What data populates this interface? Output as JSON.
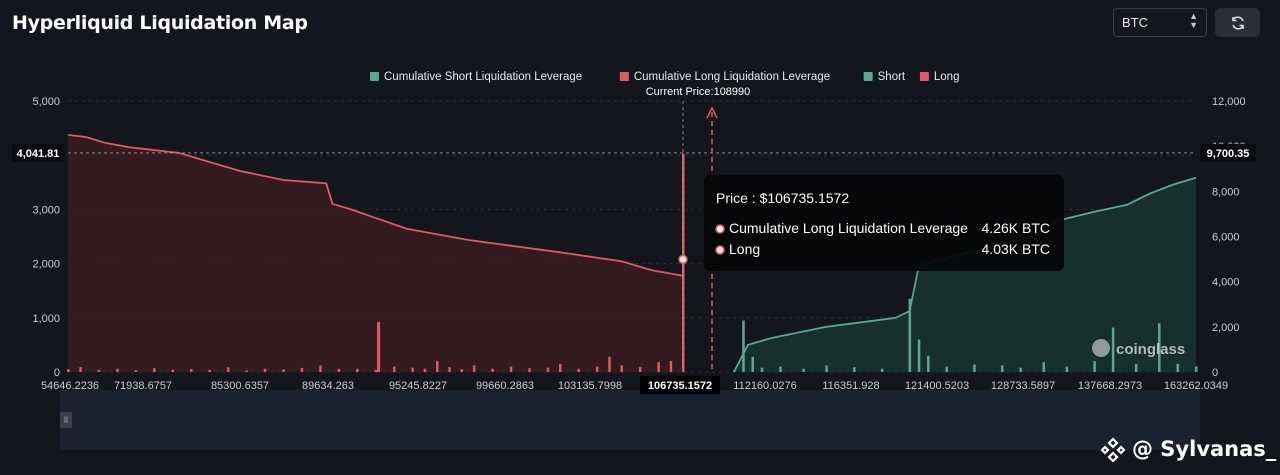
{
  "header": {
    "title": "Hyperliquid Liquidation Map",
    "asset": "BTC",
    "refresh_icon": "refresh-icon"
  },
  "watermark": {
    "text": "@ Sylvanas_",
    "logo_icon": "binance-diamond-icon"
  },
  "colors": {
    "background": "#13161c",
    "long": "#e05a5f",
    "short": "#5aa88e",
    "long_fill": "#3a1c20",
    "short_fill": "#1a3530"
  },
  "chart_data": {
    "type": "bar",
    "legend_position": "top-center",
    "legend": [
      {
        "name": "Cumulative Short Liquidation Leverage",
        "color": "#5aa88e"
      },
      {
        "name": "Cumulative Long Liquidation Leverage",
        "color": "#e05a5f"
      },
      {
        "name": "Short",
        "color": "#5aa88e"
      },
      {
        "name": "Long",
        "color": "#e05a5f"
      }
    ],
    "current_price_label": "Current Price:108990",
    "current_price": 108990,
    "x_ticks": [
      "54646.2236",
      "71938.6757",
      "85300.6357",
      "89634.263",
      "95245.8227",
      "99660.2863",
      "103135.7998",
      "106735.1572",
      "112160.0276",
      "116351.928",
      "121400.5203",
      "128733.5897",
      "137668.2973",
      "163262.0349"
    ],
    "x_highlight": "106735.1572",
    "y_left": {
      "ticks": [
        "0",
        "1,000",
        "2,000",
        "3,000",
        "4,000",
        "5,000"
      ],
      "ylim": [
        0,
        5000
      ],
      "crosshair_label": "4,041.81",
      "crosshair_value": 4041.81
    },
    "y_right": {
      "ticks": [
        "0",
        "2,000",
        "4,000",
        "6,000",
        "8,000",
        "10,000",
        "12,000"
      ],
      "ylim": [
        0,
        12000
      ],
      "crosshair_label": "9,700.35",
      "crosshair_value": 9700.35
    },
    "grid": true,
    "cumulative_long": {
      "name": "Cumulative Long Liquidation Leverage",
      "points": [
        [
          0,
          10500
        ],
        [
          0.03,
          10400
        ],
        [
          0.06,
          10150
        ],
        [
          0.1,
          9950
        ],
        [
          0.18,
          9700
        ],
        [
          0.28,
          8900
        ],
        [
          0.35,
          8500
        ],
        [
          0.42,
          8350
        ],
        [
          0.43,
          7450
        ],
        [
          0.46,
          7200
        ],
        [
          0.55,
          6350
        ],
        [
          0.65,
          5850
        ],
        [
          0.8,
          5300
        ],
        [
          0.9,
          4900
        ],
        [
          0.95,
          4500
        ],
        [
          1.0,
          4260
        ]
      ]
    },
    "cumulative_short": {
      "name": "Cumulative Short Liquidation Leverage",
      "points": [
        [
          0,
          0
        ],
        [
          0.03,
          1200
        ],
        [
          0.08,
          1500
        ],
        [
          0.2,
          2000
        ],
        [
          0.35,
          2400
        ],
        [
          0.38,
          2700
        ],
        [
          0.4,
          4700
        ],
        [
          0.45,
          5000
        ],
        [
          0.55,
          5500
        ],
        [
          0.65,
          6000
        ],
        [
          0.7,
          6700
        ],
        [
          0.78,
          7100
        ],
        [
          0.85,
          7400
        ],
        [
          0.9,
          7900
        ],
        [
          0.95,
          8300
        ],
        [
          1.0,
          8600
        ]
      ]
    },
    "long_bars": [
      {
        "x": 0.0,
        "v": 50
      },
      {
        "x": 0.02,
        "v": 90
      },
      {
        "x": 0.05,
        "v": 40
      },
      {
        "x": 0.08,
        "v": 60
      },
      {
        "x": 0.11,
        "v": 35
      },
      {
        "x": 0.14,
        "v": 70
      },
      {
        "x": 0.17,
        "v": 45
      },
      {
        "x": 0.2,
        "v": 55
      },
      {
        "x": 0.23,
        "v": 40
      },
      {
        "x": 0.26,
        "v": 85
      },
      {
        "x": 0.29,
        "v": 30
      },
      {
        "x": 0.32,
        "v": 60
      },
      {
        "x": 0.35,
        "v": 50
      },
      {
        "x": 0.38,
        "v": 75
      },
      {
        "x": 0.41,
        "v": 120
      },
      {
        "x": 0.44,
        "v": 60
      },
      {
        "x": 0.47,
        "v": 60
      },
      {
        "x": 0.5,
        "v": 40
      },
      {
        "x": 0.53,
        "v": 100
      },
      {
        "x": 0.56,
        "v": 80
      },
      {
        "x": 0.58,
        "v": 60
      },
      {
        "x": 0.6,
        "v": 200
      },
      {
        "x": 0.62,
        "v": 90
      },
      {
        "x": 0.64,
        "v": 50
      },
      {
        "x": 0.66,
        "v": 120
      },
      {
        "x": 0.69,
        "v": 60
      },
      {
        "x": 0.72,
        "v": 100
      },
      {
        "x": 0.75,
        "v": 70
      },
      {
        "x": 0.78,
        "v": 80
      },
      {
        "x": 0.8,
        "v": 150
      },
      {
        "x": 0.83,
        "v": 60
      },
      {
        "x": 0.86,
        "v": 100
      },
      {
        "x": 0.88,
        "v": 280
      },
      {
        "x": 0.9,
        "v": 120
      },
      {
        "x": 0.93,
        "v": 90
      },
      {
        "x": 0.96,
        "v": 180
      },
      {
        "x": 0.98,
        "v": 200
      },
      {
        "x": 1.0,
        "v": 4030
      }
    ],
    "long_bar_spike": {
      "x": 0.505,
      "v": 920
    },
    "short_bars": [
      {
        "x": 0.0,
        "v": 30
      },
      {
        "x": 0.02,
        "v": 950
      },
      {
        "x": 0.04,
        "v": 280
      },
      {
        "x": 0.06,
        "v": 80
      },
      {
        "x": 0.1,
        "v": 100
      },
      {
        "x": 0.15,
        "v": 60
      },
      {
        "x": 0.2,
        "v": 120
      },
      {
        "x": 0.26,
        "v": 90
      },
      {
        "x": 0.32,
        "v": 60
      },
      {
        "x": 0.38,
        "v": 1350
      },
      {
        "x": 0.4,
        "v": 600
      },
      {
        "x": 0.42,
        "v": 300
      },
      {
        "x": 0.46,
        "v": 100
      },
      {
        "x": 0.52,
        "v": 140
      },
      {
        "x": 0.58,
        "v": 120
      },
      {
        "x": 0.62,
        "v": 80
      },
      {
        "x": 0.67,
        "v": 180
      },
      {
        "x": 0.72,
        "v": 100
      },
      {
        "x": 0.78,
        "v": 200
      },
      {
        "x": 0.82,
        "v": 820
      },
      {
        "x": 0.87,
        "v": 150
      },
      {
        "x": 0.92,
        "v": 900
      },
      {
        "x": 0.96,
        "v": 150
      },
      {
        "x": 1.0,
        "v": 100
      }
    ],
    "tooltip": {
      "title": "Price : $106735.1572",
      "rows": [
        {
          "label": "Cumulative Long Liquidation Leverage",
          "value": "4.26K BTC"
        },
        {
          "label": "Long",
          "value": "4.03K BTC"
        }
      ]
    }
  }
}
